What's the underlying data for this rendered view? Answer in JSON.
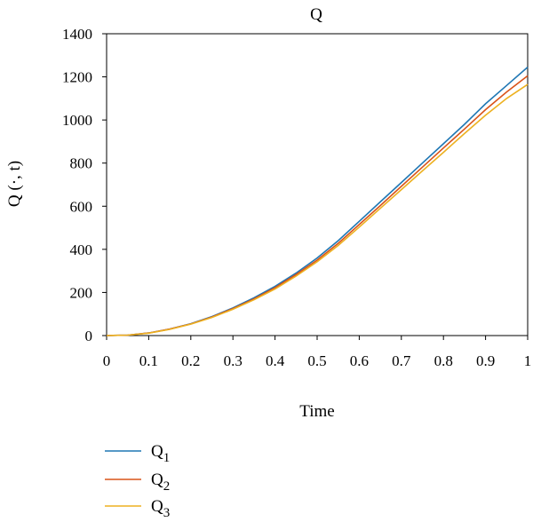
{
  "chart_data": {
    "type": "line",
    "title": "Q",
    "xlabel": "Time",
    "ylabel": "Q (·, t)",
    "xlim": [
      0,
      1
    ],
    "ylim": [
      0,
      1400
    ],
    "xticks": [
      "0",
      "0.1",
      "0.2",
      "0.3",
      "0.4",
      "0.5",
      "0.6",
      "0.7",
      "0.8",
      "0.9",
      "1"
    ],
    "yticks": [
      "0",
      "200",
      "400",
      "600",
      "800",
      "1000",
      "1200",
      "1400"
    ],
    "x": [
      0,
      0.05,
      0.1,
      0.15,
      0.2,
      0.25,
      0.3,
      0.35,
      0.4,
      0.45,
      0.5,
      0.55,
      0.6,
      0.65,
      0.7,
      0.75,
      0.8,
      0.85,
      0.9,
      0.95,
      1.0
    ],
    "series": [
      {
        "name": "Q",
        "sub": "1",
        "color": "#1f77b4",
        "values": [
          0,
          2,
          12,
          30,
          55,
          88,
          128,
          175,
          228,
          290,
          360,
          440,
          530,
          620,
          710,
          800,
          890,
          980,
          1075,
          1160,
          1245
        ]
      },
      {
        "name": "Q",
        "sub": "2",
        "color": "#d95319",
        "values": [
          0,
          2,
          12,
          30,
          54,
          86,
          125,
          170,
          222,
          283,
          350,
          428,
          515,
          603,
          692,
          781,
          870,
          958,
          1048,
          1130,
          1205
        ]
      },
      {
        "name": "Q",
        "sub": "3",
        "color": "#edb120",
        "values": [
          0,
          2,
          11,
          29,
          53,
          84,
          122,
          166,
          216,
          276,
          342,
          418,
          503,
          590,
          677,
          764,
          850,
          937,
          1022,
          1100,
          1165
        ]
      }
    ],
    "grid": false,
    "legend_position": "bottom-left"
  }
}
